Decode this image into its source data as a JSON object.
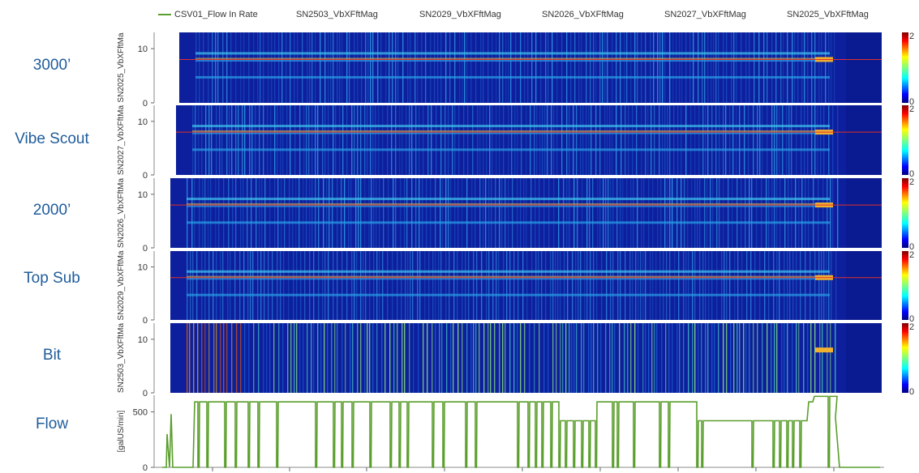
{
  "legend": [
    "CSV01_Flow In Rate",
    "SN2503_VbXFftMag",
    "SN2029_VbXFftMag",
    "SN2026_VbXFftMag",
    "SN2027_VbXFftMag",
    "SN2025_VbXFftMag"
  ],
  "row_labels": [
    "3000’",
    "Vibe Scout",
    "2000’",
    "Top Sub",
    "Bit",
    "Flow"
  ],
  "colors": {
    "flow_line": "#5a9e2b",
    "reference_line": "#e0312a",
    "background": "#ffffff"
  },
  "chart_data": [
    {
      "type": "heatmap",
      "ylabel": "SN2025_VbXFftMa",
      "yticks": [
        0,
        10
      ],
      "colorbar_ticks": [
        0,
        2
      ],
      "colormap": "jet",
      "reference_line_y": 8
    },
    {
      "type": "heatmap",
      "ylabel": "SN2027_VbXFftMa",
      "yticks": [
        0,
        10
      ],
      "colorbar_ticks": [
        0,
        2
      ],
      "colormap": "jet",
      "reference_line_y": 8
    },
    {
      "type": "heatmap",
      "ylabel": "SN2026_VbXFftMa",
      "yticks": [
        0,
        10
      ],
      "colorbar_ticks": [
        0,
        2
      ],
      "colormap": "jet",
      "reference_line_y": 8
    },
    {
      "type": "heatmap",
      "ylabel": "SN2029_VbXFftMa",
      "yticks": [
        0,
        10
      ],
      "colorbar_ticks": [
        0,
        2
      ],
      "colormap": "jet",
      "reference_line_y": 8
    },
    {
      "type": "heatmap",
      "ylabel": "SN2503_VbXFftMa",
      "yticks": [
        0,
        10
      ],
      "colorbar_ticks": [
        0,
        2
      ],
      "colormap": "jet"
    },
    {
      "type": "line",
      "ylabel": "[galUS/min]",
      "yticks": [
        0,
        500
      ],
      "series": [
        {
          "name": "CSV01_Flow In Rate",
          "y_high": 590,
          "y_mid": 420,
          "y_low": 0
        }
      ]
    }
  ]
}
